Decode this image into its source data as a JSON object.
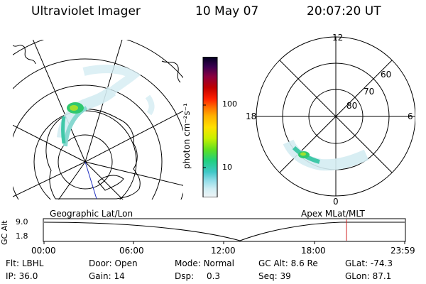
{
  "header": {
    "instrument": "Ultraviolet Imager",
    "date": "10 May 07",
    "time": "20:07:20 UT"
  },
  "colorbar": {
    "label": "photon cm⁻²s⁻¹",
    "ticks": [
      "100",
      "10"
    ],
    "colors": [
      "#000020",
      "#3a0050",
      "#8a0040",
      "#c00000",
      "#ff2000",
      "#ff7000",
      "#ffb000",
      "#ffe000",
      "#c8f000",
      "#60e020",
      "#20d080",
      "#40c8c8",
      "#90dce8",
      "#d0eef4",
      "#f0f4f6"
    ]
  },
  "left_panel": {
    "label": "Geographic Lat/Lon"
  },
  "right_panel": {
    "label": "Apex MLat/MLT",
    "mlt_labels": {
      "top": "12",
      "bottom": "0",
      "left": "18",
      "right": "6"
    },
    "lat_labels": [
      "60",
      "70",
      "80"
    ]
  },
  "timeline": {
    "y_label": "GC Alt",
    "y_ticks": [
      "9.0",
      "1.8"
    ],
    "x_ticks": [
      "00:00",
      "06:00",
      "12:00",
      "18:00",
      "23:59"
    ],
    "marker_time": "20:07"
  },
  "info": {
    "row1": [
      {
        "label": "Flt:",
        "value": "LBHL"
      },
      {
        "label": "Door:",
        "value": "Open"
      },
      {
        "label": "Mode:",
        "value": "Normal"
      },
      {
        "label": "GC Alt:",
        "value": "8.6 Re"
      },
      {
        "label": "GLat:",
        "value": "-74.3"
      }
    ],
    "row2": [
      {
        "label": "IP:",
        "value": "36.0"
      },
      {
        "label": "Gain:",
        "value": "14"
      },
      {
        "label": "Dsp:",
        "value": "0.3"
      },
      {
        "label": "Seq:",
        "value": "39"
      },
      {
        "label": "GLon:",
        "value": "87.1"
      }
    ]
  }
}
